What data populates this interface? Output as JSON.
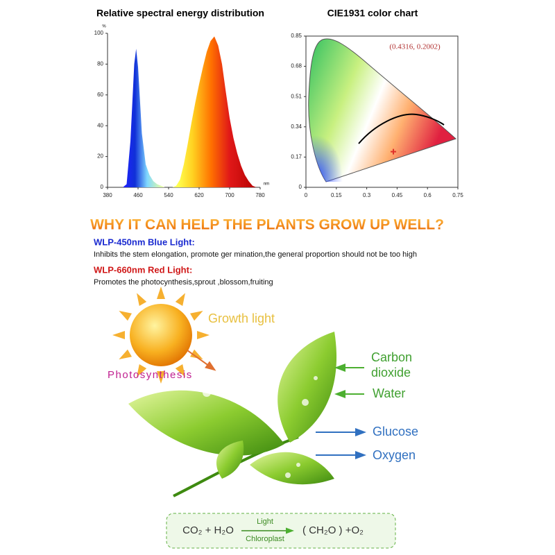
{
  "chart_data": [
    {
      "type": "area",
      "title": "Relative spectral energy distribution",
      "x": [
        380,
        390,
        400,
        410,
        420,
        430,
        440,
        450,
        455,
        460,
        470,
        480,
        490,
        500,
        510,
        520,
        530,
        540,
        550,
        560,
        570,
        580,
        590,
        600,
        610,
        620,
        630,
        640,
        650,
        660,
        670,
        680,
        690,
        700,
        710,
        720,
        730,
        740,
        750,
        760,
        770,
        780
      ],
      "values": [
        0,
        0,
        0,
        0,
        0,
        2,
        30,
        80,
        90,
        78,
        35,
        15,
        8,
        4,
        2,
        1,
        0,
        0,
        0,
        1,
        5,
        15,
        28,
        42,
        55,
        67,
        78,
        88,
        95,
        98,
        92,
        80,
        62,
        45,
        32,
        22,
        14,
        8,
        4,
        1,
        0,
        0
      ],
      "xlim": [
        380,
        780
      ],
      "ylim": [
        0,
        100
      ],
      "xticks": [
        380,
        460,
        540,
        620,
        700,
        780
      ],
      "yticks": [
        0,
        20,
        40,
        60,
        80,
        100
      ],
      "y_unit": "%",
      "x_unit": "nm"
    },
    {
      "type": "scatter",
      "title": "CIE1931 color chart",
      "x": [
        0.4316
      ],
      "values": [
        0.2002
      ],
      "color": "#e0302a",
      "annotation": "(0.4316, 0.2002)",
      "xlim": [
        0,
        0.75
      ],
      "ylim": [
        0,
        0.85
      ],
      "xticks": [
        0,
        0.15,
        0.3,
        0.45,
        0.6,
        0.75
      ],
      "yticks": [
        0,
        0.17,
        0.34,
        0.51,
        0.68,
        0.85
      ]
    }
  ],
  "heading": "WHY IT CAN HELP THE PLANTS GROW UP WELL?",
  "blue_light": {
    "title": "WLP-450nm Blue Light:",
    "text": "Inhibits the stem elongation, promote ger mination,the general proportion should not be too high"
  },
  "red_light": {
    "title": "WLP-660nm Red Light:",
    "text": "Promotes the photocynthesis,sprout ,blossom,fruiting"
  },
  "diagram": {
    "growth_light": "Growth light",
    "photosynthesis": "Photosynthesis",
    "carbon_dioxide": [
      "Carbon",
      "dioxide"
    ],
    "water": "Water",
    "glucose": "Glucose",
    "oxygen": "Oxygen"
  },
  "formula": {
    "reactants": "CO₂ + H₂O",
    "above": "Light",
    "below": "Chloroplast",
    "products": "( CH₂O ) +O₂"
  }
}
